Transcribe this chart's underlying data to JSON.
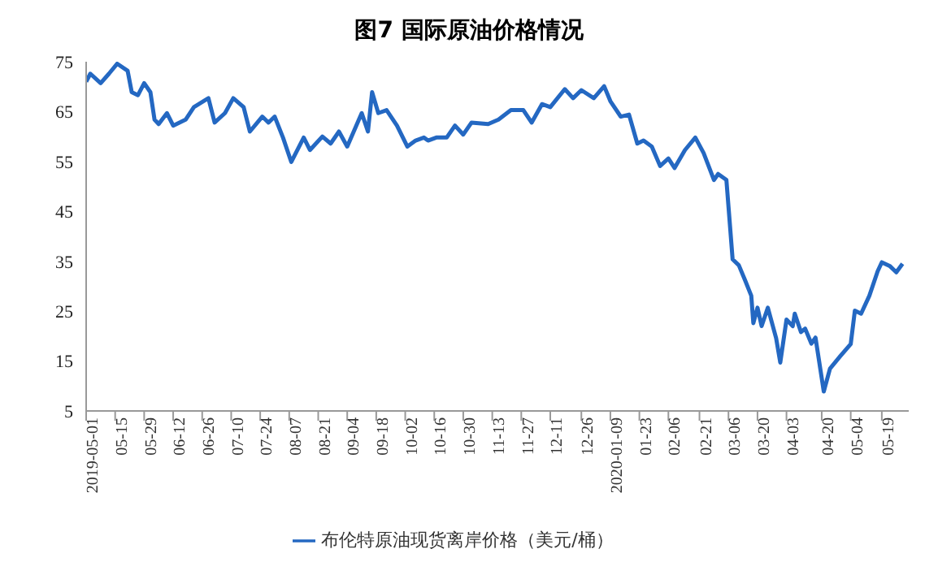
{
  "chart_data": {
    "type": "line",
    "title": "图7 国际原油价格情况",
    "legend": "bottom",
    "grid": false,
    "marker": "none",
    "line_style": "solid",
    "xlim": [
      "2019-05-01",
      "2020-06-01"
    ],
    "xticks": [
      {
        "value": "2019-05-01",
        "label": "2019-05-01"
      },
      {
        "value": "2019-05-15",
        "label": "05-15"
      },
      {
        "value": "2019-05-29",
        "label": "05-29"
      },
      {
        "value": "2019-06-12",
        "label": "06-12"
      },
      {
        "value": "2019-06-26",
        "label": "06-26"
      },
      {
        "value": "2019-07-10",
        "label": "07-10"
      },
      {
        "value": "2019-07-24",
        "label": "07-24"
      },
      {
        "value": "2019-08-07",
        "label": "08-07"
      },
      {
        "value": "2019-08-21",
        "label": "08-21"
      },
      {
        "value": "2019-09-04",
        "label": "09-04"
      },
      {
        "value": "2019-09-18",
        "label": "09-18"
      },
      {
        "value": "2019-10-02",
        "label": "10-02"
      },
      {
        "value": "2019-10-16",
        "label": "10-16"
      },
      {
        "value": "2019-10-30",
        "label": "10-30"
      },
      {
        "value": "2019-11-13",
        "label": "11-13"
      },
      {
        "value": "2019-11-27",
        "label": "11-27"
      },
      {
        "value": "2019-12-11",
        "label": "12-11"
      },
      {
        "value": "2019-12-26",
        "label": "12-26"
      },
      {
        "value": "2020-01-09",
        "label": "2020-01-09"
      },
      {
        "value": "2020-01-23",
        "label": "01-23"
      },
      {
        "value": "2020-02-06",
        "label": "02-06"
      },
      {
        "value": "2020-02-21",
        "label": "02-21"
      },
      {
        "value": "2020-03-06",
        "label": "03-06"
      },
      {
        "value": "2020-03-20",
        "label": "03-20"
      },
      {
        "value": "2020-04-03",
        "label": "04-03"
      },
      {
        "value": "2020-04-20",
        "label": "04-20"
      },
      {
        "value": "2020-05-04",
        "label": "05-04"
      },
      {
        "value": "2020-05-19",
        "label": "05-19"
      }
    ],
    "ylim": [
      5,
      75
    ],
    "yticks": [
      5,
      15,
      25,
      35,
      45,
      55,
      65,
      75
    ],
    "x": [
      "2019-05-01",
      "2019-05-03",
      "2019-05-08",
      "2019-05-12",
      "2019-05-16",
      "2019-05-21",
      "2019-05-23",
      "2019-05-26",
      "2019-05-29",
      "2019-06-01",
      "2019-06-03",
      "2019-06-05",
      "2019-06-09",
      "2019-06-12",
      "2019-06-18",
      "2019-06-22",
      "2019-06-29",
      "2019-07-02",
      "2019-07-07",
      "2019-07-11",
      "2019-07-16",
      "2019-07-19",
      "2019-07-25",
      "2019-07-28",
      "2019-07-31",
      "2019-08-04",
      "2019-08-08",
      "2019-08-14",
      "2019-08-17",
      "2019-08-23",
      "2019-08-27",
      "2019-08-31",
      "2019-09-04",
      "2019-09-09",
      "2019-09-11",
      "2019-09-14",
      "2019-09-16",
      "2019-09-19",
      "2019-09-23",
      "2019-09-28",
      "2019-10-03",
      "2019-10-07",
      "2019-10-11",
      "2019-10-13",
      "2019-10-17",
      "2019-10-22",
      "2019-10-26",
      "2019-10-30",
      "2019-11-03",
      "2019-11-11",
      "2019-11-16",
      "2019-11-22",
      "2019-11-28",
      "2019-12-02",
      "2019-12-07",
      "2019-12-11",
      "2019-12-18",
      "2019-12-22",
      "2019-12-26",
      "2020-01-01",
      "2020-01-06",
      "2020-01-09",
      "2020-01-14",
      "2020-01-18",
      "2020-01-22",
      "2020-01-25",
      "2020-01-29",
      "2020-02-02",
      "2020-02-06",
      "2020-02-09",
      "2020-02-14",
      "2020-02-19",
      "2020-02-23",
      "2020-02-28",
      "2020-03-01",
      "2020-03-05",
      "2020-03-08",
      "2020-03-11",
      "2020-03-14",
      "2020-03-17",
      "2020-03-18",
      "2020-03-20",
      "2020-03-22",
      "2020-03-25",
      "2020-03-29",
      "2020-03-31",
      "2020-04-03",
      "2020-04-06",
      "2020-04-07",
      "2020-04-10",
      "2020-04-12",
      "2020-04-15",
      "2020-04-17",
      "2020-04-21",
      "2020-04-24",
      "2020-04-29",
      "2020-05-04",
      "2020-05-06",
      "2020-05-09",
      "2020-05-13",
      "2020-05-17",
      "2020-05-19",
      "2020-05-23",
      "2020-05-26",
      "2020-05-29"
    ],
    "series": [
      {
        "name": "布伦特原油现货离岸价格（美元/桶）",
        "color": "#2468c2",
        "values": [
          71,
          72.6,
          70.7,
          72.6,
          74.6,
          73.2,
          68.9,
          68.3,
          70.7,
          68.9,
          63.4,
          62.5,
          64.7,
          62.2,
          63.4,
          65.9,
          67.7,
          62.8,
          64.7,
          67.7,
          65.9,
          61,
          64,
          62.8,
          64,
          59.8,
          54.9,
          59.8,
          57.3,
          60,
          58.6,
          61,
          58,
          62.8,
          64.7,
          61,
          68.9,
          64.7,
          65.3,
          62.2,
          58,
          59.2,
          59.8,
          59.2,
          59.8,
          59.8,
          62.2,
          60.4,
          62.8,
          62.5,
          63.4,
          65.3,
          65.3,
          62.8,
          66.5,
          65.9,
          69.5,
          67.7,
          69.3,
          67.7,
          70.1,
          67.1,
          64,
          64.4,
          58.6,
          59.2,
          58,
          54.1,
          55.6,
          53.7,
          57.3,
          59.8,
          56.7,
          51.3,
          52.5,
          51.3,
          35.4,
          34.2,
          31.2,
          28.1,
          22.6,
          25.7,
          22,
          25.7,
          19.6,
          14.7,
          23.3,
          22,
          24.5,
          20.8,
          21.5,
          18.5,
          19.7,
          8.9,
          13.5,
          16,
          18.4,
          25.1,
          24.5,
          28.1,
          33,
          34.8,
          34,
          32.8,
          34.5
        ]
      }
    ]
  }
}
